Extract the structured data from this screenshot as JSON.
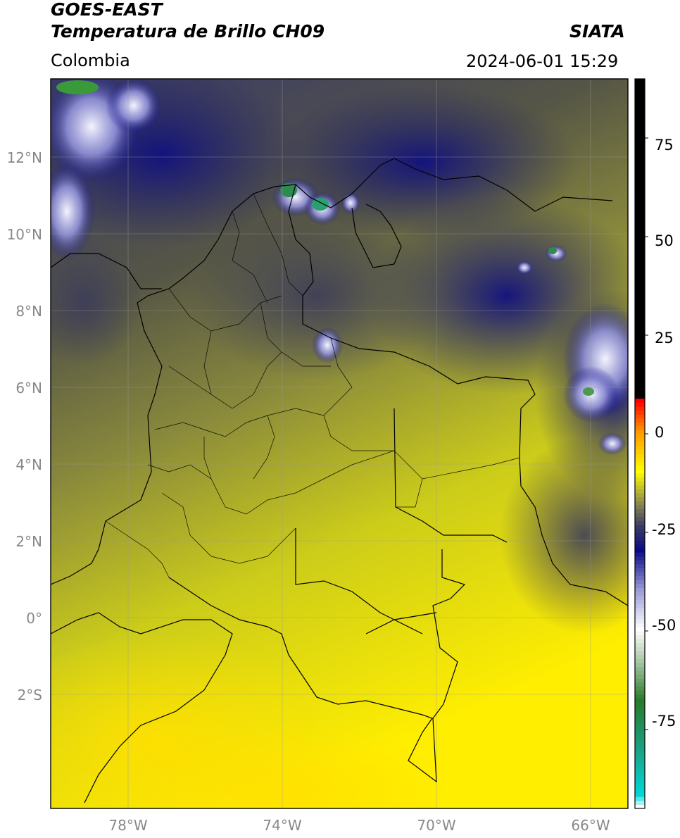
{
  "header": {
    "satellite": "GOES-EAST",
    "product": "Temperatura de Brillo CH09",
    "region": "Colombia",
    "brand": "SIATA",
    "datetime": "2024-06-01 15:29"
  },
  "map": {
    "lat_ticks": [
      "12°N",
      "10°N",
      "8°N",
      "6°N",
      "4°N",
      "2°N",
      "0°",
      "2°S"
    ],
    "lon_ticks": [
      "78°W",
      "74°W",
      "70°W",
      "66°W"
    ],
    "extent": {
      "lon_min": -80,
      "lon_max": -65,
      "lat_min": -4.5,
      "lat_max": 14
    }
  },
  "colorbar": {
    "ticks": [
      "75",
      "50",
      "25",
      "0",
      "-25",
      "-50",
      "-75"
    ],
    "range": [
      -95,
      90
    ],
    "stops": [
      {
        "value": -95,
        "color": "#ffffff"
      },
      {
        "value": -92,
        "color": "#00d8d8"
      },
      {
        "value": -80,
        "color": "#1aa080"
      },
      {
        "value": -68,
        "color": "#2a7a2a"
      },
      {
        "value": -58,
        "color": "#a8c8a8"
      },
      {
        "value": -50,
        "color": "#ffffff"
      },
      {
        "value": -40,
        "color": "#9a9ad8"
      },
      {
        "value": -30,
        "color": "#0a0a88"
      },
      {
        "value": -24,
        "color": "#3a3a66"
      },
      {
        "value": -18,
        "color": "#8a8a50"
      },
      {
        "value": -10,
        "color": "#ffff00"
      },
      {
        "value": 0,
        "color": "#ff9900"
      },
      {
        "value": 8,
        "color": "#ff0000"
      },
      {
        "value": 8.1,
        "color": "#000000"
      },
      {
        "value": 90,
        "color": "#000000"
      }
    ]
  }
}
